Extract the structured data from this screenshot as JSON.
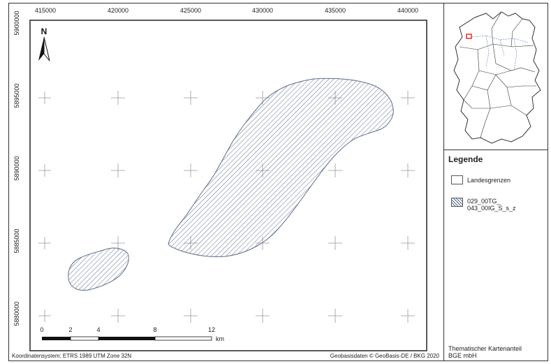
{
  "x_ticks": [
    "415000",
    "420000",
    "425000",
    "430000",
    "435000",
    "440000"
  ],
  "y_ticks": [
    "5900000",
    "5895000",
    "5890000",
    "5885000",
    "5880000"
  ],
  "north_label": "N",
  "scalebar": {
    "labels": [
      "0",
      "2",
      "4",
      "8",
      "12"
    ],
    "unit": "km"
  },
  "footer": {
    "crs": "Koordinatensystem: ETRS 1989 UTM Zone 32N",
    "basemap_credit": "Geobasisdaten © GeoBasis-DE / BKG 2020"
  },
  "legend": {
    "title": "Legende",
    "items": [
      {
        "label": "Landesgrenzen"
      },
      {
        "label": "029_00TG_ 043_00IG_S_s_z"
      }
    ]
  },
  "credit": {
    "line1": "Thematischer Kartenanteil",
    "line2": "BGE mbH"
  },
  "colors": {
    "hatch": "#5b6d8c",
    "polygon_fill": "#ffffff",
    "border": "#333333",
    "inset_highlight": "#e02020",
    "river": "#4a6fb0"
  }
}
